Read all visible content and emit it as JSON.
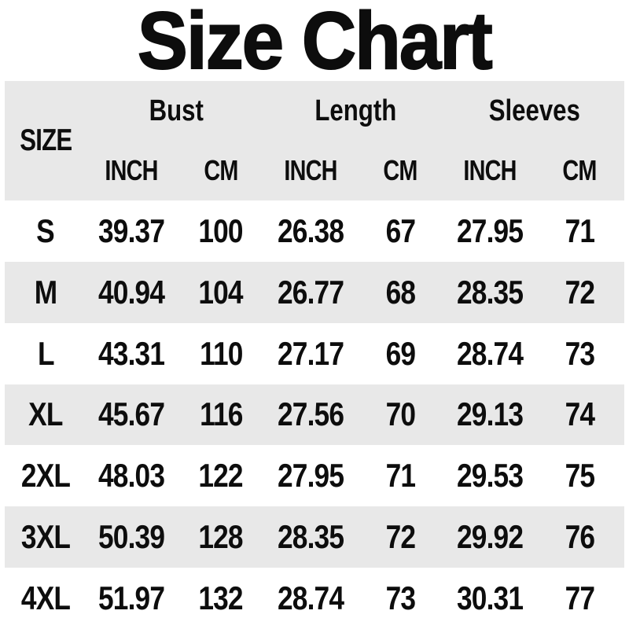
{
  "colors": {
    "background": "#ffffff",
    "stripe": "#e8e8e8",
    "text": "#0d0d0d"
  },
  "chart_data": {
    "type": "table",
    "title": "Size Chart",
    "size_column_header": "SIZE",
    "column_groups": [
      {
        "label": "Bust",
        "subcolumns": [
          "INCH",
          "CM"
        ]
      },
      {
        "label": "Length",
        "subcolumns": [
          "INCH",
          "CM"
        ]
      },
      {
        "label": "Sleeves",
        "subcolumns": [
          "INCH",
          "CM"
        ]
      }
    ],
    "rows": [
      {
        "size": "S",
        "values": [
          "39.37",
          "100",
          "26.38",
          "67",
          "27.95",
          "71"
        ]
      },
      {
        "size": "M",
        "values": [
          "40.94",
          "104",
          "26.77",
          "68",
          "28.35",
          "72"
        ]
      },
      {
        "size": "L",
        "values": [
          "43.31",
          "110",
          "27.17",
          "69",
          "28.74",
          "73"
        ]
      },
      {
        "size": "XL",
        "values": [
          "45.67",
          "116",
          "27.56",
          "70",
          "29.13",
          "74"
        ]
      },
      {
        "size": "2XL",
        "values": [
          "48.03",
          "122",
          "27.95",
          "71",
          "29.53",
          "75"
        ]
      },
      {
        "size": "3XL",
        "values": [
          "50.39",
          "128",
          "28.35",
          "72",
          "29.92",
          "76"
        ]
      },
      {
        "size": "4XL",
        "values": [
          "51.97",
          "132",
          "28.74",
          "73",
          "30.31",
          "77"
        ]
      }
    ]
  }
}
